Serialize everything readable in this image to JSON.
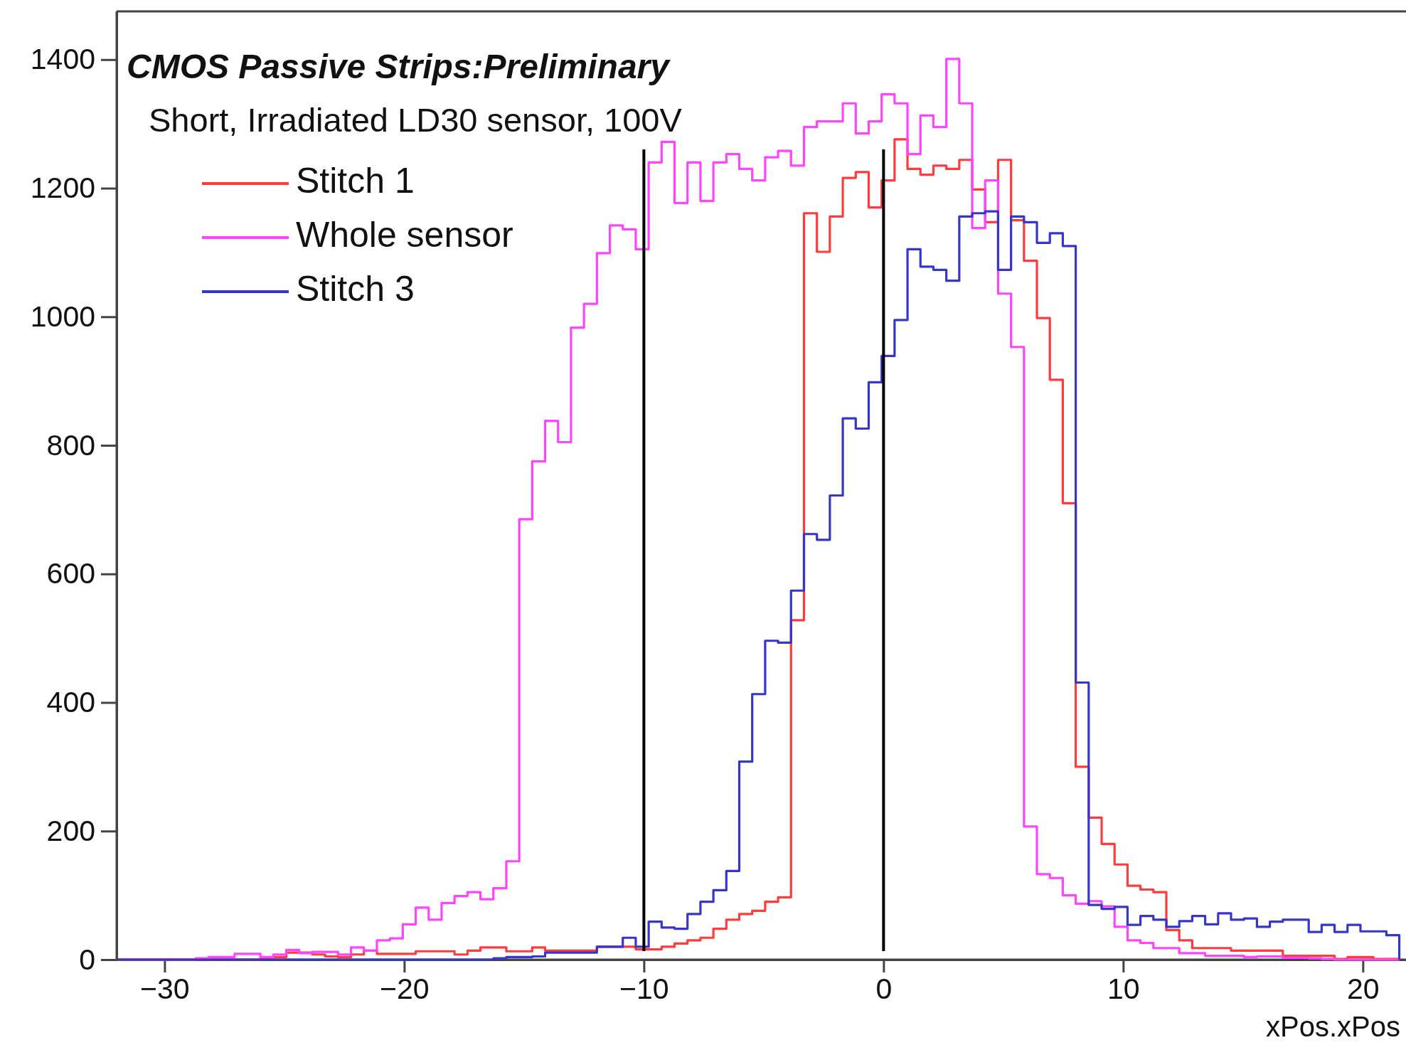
{
  "chart_data": {
    "type": "histogram",
    "title": "CMOS  Passive Strips:Preliminary",
    "subtitle": "Short, Irradiated LD30 sensor, 100V",
    "xlabel": "xPos.xPos",
    "bins": [
      -31.94,
      -31.4,
      -30.86,
      -30.32,
      -29.78,
      -29.24,
      -28.7,
      -28.16,
      -27.62,
      -27.08,
      -26.54,
      -26,
      -25.46,
      -24.92,
      -24.38,
      -23.84,
      -23.3,
      -22.76,
      -22.22,
      -21.68,
      -21.14,
      -20.6,
      -20.06,
      -19.52,
      -18.98,
      -18.44,
      -17.9,
      -17.36,
      -16.82,
      -16.28,
      -15.74,
      -15.2,
      -14.66,
      -14.12,
      -13.58,
      -13.04,
      -12.5,
      -11.96,
      -11.42,
      -10.88,
      -10.34,
      -9.8,
      -9.26,
      -8.72,
      -8.18,
      -7.64,
      -7.1,
      -6.56,
      -6.02,
      -5.48,
      -4.94,
      -4.4,
      -3.86,
      -3.32,
      -2.78,
      -2.24,
      -1.7,
      -1.16,
      -0.62,
      -0.08,
      0.46,
      1,
      1.54,
      2.08,
      2.62,
      3.16,
      3.7,
      4.24,
      4.78,
      5.32,
      5.86,
      6.4,
      6.94,
      7.48,
      8.02,
      8.56,
      9.1,
      9.64,
      10.18,
      10.72,
      11.26,
      11.8,
      12.34,
      12.88,
      13.42,
      13.96,
      14.5,
      15.04,
      15.58,
      16.12,
      16.66,
      17.2,
      17.74,
      18.28,
      18.82,
      19.36,
      19.9,
      20.44,
      20.98,
      21.52
    ],
    "series": [
      {
        "name": "Stitch 1",
        "color": "#ff3b3b",
        "values": [
          0,
          0,
          0,
          0,
          0,
          0,
          0,
          0,
          0,
          0,
          0,
          2,
          4,
          11,
          11,
          8,
          5,
          4,
          8,
          14,
          9,
          9,
          9,
          13,
          13,
          13,
          8,
          14,
          19,
          19,
          13,
          13,
          19,
          14,
          14,
          14,
          14,
          20,
          20,
          20,
          16,
          16,
          20,
          25,
          30,
          34,
          48,
          62,
          71,
          76,
          90,
          97,
          528,
          1161,
          1101,
          1156,
          1216,
          1225,
          1170,
          1212,
          1276,
          1230,
          1221,
          1235,
          1230,
          1244,
          1198,
          1147,
          1244,
          1150,
          1087,
          998,
          902,
          710,
          300,
          221,
          180,
          148,
          115,
          109,
          105,
          46,
          30,
          18,
          18,
          18,
          14,
          14,
          14,
          14,
          6,
          6,
          6,
          6,
          1,
          4,
          4,
          1,
          1
        ]
      },
      {
        "name": "Whole sensor",
        "color": "#ff44ff",
        "values": [
          0,
          0,
          0,
          0,
          0,
          0,
          2,
          4,
          4,
          9,
          9,
          4,
          8,
          15,
          10,
          12,
          12,
          8,
          19,
          14,
          30,
          33,
          55,
          81,
          62,
          88,
          99,
          105,
          94,
          111,
          153,
          685,
          775,
          838,
          805,
          983,
          1020,
          1099,
          1142,
          1136,
          1105,
          1240,
          1272,
          1177,
          1240,
          1180,
          1240,
          1253,
          1230,
          1212,
          1248,
          1258,
          1235,
          1295,
          1304,
          1304,
          1332,
          1285,
          1304,
          1346,
          1332,
          1253,
          1313,
          1295,
          1401,
          1332,
          1138,
          1212,
          1036,
          953,
          207,
          133,
          127,
          100,
          87,
          91,
          83,
          51,
          30,
          26,
          18,
          18,
          10,
          10,
          6,
          6,
          6,
          4,
          5,
          5,
          3,
          3,
          2,
          1,
          0,
          0,
          0,
          0,
          0
        ]
      },
      {
        "name": "Stitch 3",
        "color": "#3636c8",
        "values": [
          0,
          0,
          0,
          0,
          0,
          0,
          0,
          0,
          0,
          0,
          0,
          0,
          0,
          0,
          0,
          0,
          0,
          0,
          0,
          0,
          0,
          0,
          0,
          0,
          0,
          0,
          0,
          0,
          0,
          2,
          4,
          4,
          5,
          11,
          11,
          11,
          11,
          20,
          20,
          34,
          20,
          59,
          50,
          48,
          71,
          90,
          108,
          138,
          308,
          413,
          496,
          493,
          574,
          662,
          653,
          722,
          842,
          826,
          898,
          939,
          995,
          1105,
          1078,
          1073,
          1056,
          1156,
          1161,
          1164,
          1073,
          1156,
          1147,
          1115,
          1130,
          1110,
          431,
          85,
          79,
          82,
          54,
          68,
          62,
          51,
          60,
          68,
          55,
          72,
          62,
          64,
          51,
          59,
          62,
          62,
          43,
          54,
          43,
          54,
          44,
          44,
          38
        ]
      }
    ],
    "xlim": [
      -32,
      21.8
    ],
    "ylim": [
      0,
      1475
    ],
    "xticks": [
      {
        "value": -30,
        "label": "−30"
      },
      {
        "value": -20,
        "label": "−20"
      },
      {
        "value": -10,
        "label": "−10"
      },
      0,
      10,
      20
    ],
    "yticks": [
      0,
      200,
      400,
      600,
      800,
      1000,
      1200,
      1400
    ],
    "ref_lines": [
      {
        "axis": "x",
        "value": -10,
        "color": "#000000"
      },
      {
        "axis": "x",
        "value": 0,
        "color": "#000000"
      }
    ],
    "legend": "top left"
  }
}
